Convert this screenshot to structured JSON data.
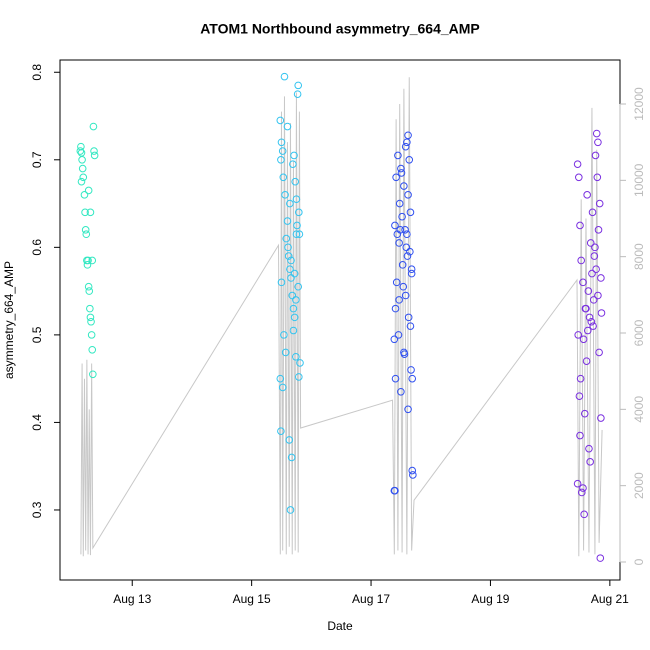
{
  "chart_data": {
    "type": "scatter",
    "title": "ATOM1 Northbound asymmetry_664_AMP",
    "xlabel": "Date",
    "ylabel": "asymmetry_664_AMP",
    "xlim": [
      11.79,
      21.17
    ],
    "xticks": [
      {
        "value": 13,
        "label": "Aug 13"
      },
      {
        "value": 15,
        "label": "Aug 15"
      },
      {
        "value": 17,
        "label": "Aug 17"
      },
      {
        "value": 19,
        "label": "Aug 19"
      },
      {
        "value": 21,
        "label": "Aug 21"
      }
    ],
    "ylim": [
      0.22,
      0.814
    ],
    "yticks": [
      0.3,
      0.4,
      0.5,
      0.6,
      0.7,
      0.8
    ],
    "y2lim": [
      -472,
      13153
    ],
    "y2ticks": [
      0,
      2000,
      4000,
      6000,
      8000,
      10000,
      12000
    ],
    "series": [
      {
        "color": "#33e8c2",
        "x": [
          12.13,
          12.14,
          12.15,
          12.16,
          12.17,
          12.18,
          12.2,
          12.21,
          12.22,
          12.23,
          12.24,
          12.25,
          12.26,
          12.27,
          12.28,
          12.29,
          12.3,
          12.31,
          12.32,
          12.33,
          12.34,
          12.35,
          12.36,
          12.37,
          12.15,
          12.27,
          12.3,
          12.33
        ],
        "values": [
          0.71,
          0.715,
          0.708,
          0.7,
          0.69,
          0.68,
          0.66,
          0.64,
          0.62,
          0.615,
          0.585,
          0.58,
          0.585,
          0.555,
          0.55,
          0.53,
          0.52,
          0.515,
          0.5,
          0.483,
          0.455,
          0.738,
          0.71,
          0.705,
          0.675,
          0.665,
          0.64,
          0.585
        ]
      },
      {
        "color": "#33c4f0",
        "x": [
          15.55,
          15.48,
          15.5,
          15.52,
          15.49,
          15.53,
          15.56,
          15.6,
          15.58,
          15.62,
          15.64,
          15.66,
          15.5,
          15.68,
          15.7,
          15.72,
          15.54,
          15.57,
          15.74,
          15.48,
          15.52,
          15.49,
          15.63,
          15.65,
          15.67,
          15.78,
          15.77,
          15.6,
          15.71,
          15.69,
          15.73,
          15.75,
          15.79,
          15.76,
          15.8,
          15.61,
          15.66,
          15.72,
          15.78,
          15.74,
          15.7,
          15.81,
          15.79,
          15.64,
          15.75
        ],
        "values": [
          0.795,
          0.745,
          0.72,
          0.71,
          0.7,
          0.68,
          0.66,
          0.63,
          0.61,
          0.59,
          0.575,
          0.565,
          0.56,
          0.545,
          0.53,
          0.52,
          0.5,
          0.48,
          0.475,
          0.45,
          0.44,
          0.39,
          0.38,
          0.3,
          0.36,
          0.785,
          0.775,
          0.738,
          0.705,
          0.695,
          0.675,
          0.655,
          0.64,
          0.625,
          0.615,
          0.6,
          0.585,
          0.57,
          0.555,
          0.54,
          0.505,
          0.468,
          0.452,
          0.65,
          0.615
        ]
      },
      {
        "color": "#3050f0",
        "x": [
          17.6,
          17.45,
          17.5,
          17.42,
          17.55,
          17.62,
          17.48,
          17.52,
          17.4,
          17.57,
          17.6,
          17.47,
          17.65,
          17.53,
          17.68,
          17.43,
          17.58,
          17.41,
          17.63,
          17.46,
          17.39,
          17.55,
          17.67,
          17.41,
          17.5,
          17.62,
          17.69,
          17.7,
          17.39,
          17.4,
          17.62,
          17.58,
          17.64,
          17.51,
          17.66,
          17.44,
          17.59,
          17.61,
          17.68,
          17.54,
          17.47,
          17.66,
          17.56,
          17.69,
          17.49
        ],
        "values": [
          0.72,
          0.705,
          0.69,
          0.68,
          0.67,
          0.66,
          0.65,
          0.635,
          0.625,
          0.62,
          0.615,
          0.605,
          0.595,
          0.58,
          0.57,
          0.56,
          0.545,
          0.53,
          0.52,
          0.5,
          0.495,
          0.48,
          0.46,
          0.45,
          0.435,
          0.415,
          0.345,
          0.34,
          0.322,
          0.322,
          0.728,
          0.715,
          0.7,
          0.685,
          0.64,
          0.615,
          0.6,
          0.59,
          0.575,
          0.555,
          0.54,
          0.51,
          0.478,
          0.45,
          0.62
        ]
      },
      {
        "color": "#7a30e0",
        "x": [
          20.46,
          20.48,
          20.62,
          20.5,
          20.75,
          20.52,
          20.7,
          20.55,
          20.8,
          20.6,
          20.66,
          20.72,
          20.47,
          20.82,
          20.49,
          20.58,
          20.5,
          20.65,
          20.46,
          20.53,
          20.57,
          20.84,
          20.78,
          20.8,
          20.76,
          20.79,
          20.83,
          20.71,
          20.81,
          20.68,
          20.74,
          20.77,
          20.85,
          20.64,
          20.73,
          20.59,
          20.86,
          20.69,
          20.63,
          20.56,
          20.61,
          20.51,
          20.85,
          20.67,
          20.55
        ],
        "values": [
          0.695,
          0.68,
          0.66,
          0.625,
          0.6,
          0.585,
          0.57,
          0.56,
          0.545,
          0.53,
          0.52,
          0.51,
          0.5,
          0.48,
          0.43,
          0.41,
          0.385,
          0.37,
          0.33,
          0.32,
          0.295,
          0.245,
          0.73,
          0.72,
          0.705,
          0.68,
          0.65,
          0.64,
          0.62,
          0.605,
          0.59,
          0.575,
          0.565,
          0.55,
          0.54,
          0.53,
          0.525,
          0.515,
          0.505,
          0.495,
          0.47,
          0.45,
          0.405,
          0.355,
          0.325
        ]
      },
      {
        "type": "line",
        "axis": "y2",
        "color": "#c8c8c8",
        "x": [
          12.14,
          12.16,
          12.18,
          12.2,
          12.22,
          12.24,
          12.26,
          12.28,
          12.3,
          12.32,
          12.34,
          15.45,
          15.48,
          15.5,
          15.52,
          15.55,
          15.58,
          15.6,
          15.63,
          15.65,
          15.68,
          15.7,
          15.73,
          15.75,
          15.78,
          15.8,
          15.82,
          17.36,
          17.39,
          17.42,
          17.45,
          17.48,
          17.52,
          17.55,
          17.6,
          17.64,
          17.68,
          17.72,
          20.45,
          20.48,
          20.52,
          20.56,
          20.6,
          20.65,
          20.7,
          20.75,
          20.78,
          20.82,
          20.87
        ],
        "values": [
          200,
          5200,
          150,
          4800,
          300,
          5300,
          200,
          4000,
          180,
          5200,
          367,
          8300,
          200,
          11800,
          300,
          12200,
          200,
          11000,
          400,
          11500,
          200,
          10500,
          300,
          12300,
          250,
          11800,
          3510,
          4240,
          200,
          11600,
          300,
          12000,
          250,
          12400,
          200,
          12700,
          300,
          1620,
          7390,
          150,
          9500,
          300,
          9000,
          250,
          11900,
          200,
          10800,
          500,
          3460
        ]
      }
    ]
  }
}
